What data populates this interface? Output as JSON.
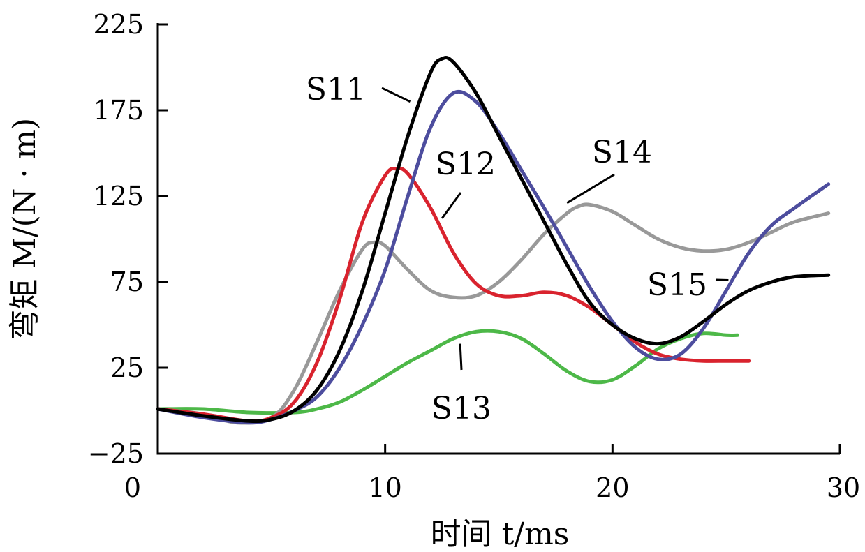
{
  "chart_data": {
    "type": "line",
    "xlabel": "时间 t/ms",
    "ylabel": "弯矩 M/(N · m)",
    "xlim": [
      0,
      30
    ],
    "ylim": [
      -25,
      225
    ],
    "xticks": [
      0,
      10,
      20,
      30
    ],
    "yticks": [
      -25,
      25,
      75,
      125,
      175,
      225
    ],
    "xtick_labels": [
      "0",
      "10",
      "20",
      "30"
    ],
    "ytick_labels": [
      "−25",
      "25",
      "75",
      "125",
      "175",
      "225"
    ],
    "grid": false,
    "series": [
      {
        "name": "S11",
        "color": "#000000",
        "x": [
          0,
          2,
          4,
          5,
          6,
          7,
          8,
          9,
          10,
          11,
          12,
          12.5,
          13,
          14,
          15,
          16,
          17,
          18,
          19,
          20,
          21,
          22,
          23,
          24,
          25,
          26,
          27,
          28,
          29.5
        ],
        "y": [
          1,
          -3,
          -6,
          -5,
          0,
          12,
          35,
          70,
          115,
          160,
          197,
          205,
          203,
          185,
          160,
          135,
          110,
          85,
          63,
          50,
          42,
          39,
          43,
          52,
          62,
          70,
          75,
          78,
          79
        ]
      },
      {
        "name": "S12",
        "color": "#d9232e",
        "x": [
          0,
          2,
          4,
          5,
          6,
          7,
          8,
          9,
          10,
          10.5,
          11,
          12,
          13,
          14,
          15,
          16,
          17,
          18,
          19,
          20,
          21,
          22,
          23,
          24,
          25,
          26
        ],
        "y": [
          1,
          -2,
          -6,
          -4,
          5,
          28,
          65,
          110,
          137,
          141,
          138,
          118,
          92,
          74,
          67,
          67,
          69,
          67,
          60,
          50,
          40,
          33,
          30,
          29,
          29,
          29
        ]
      },
      {
        "name": "S13",
        "color": "#4db848",
        "x": [
          0,
          2,
          4,
          6,
          7,
          8,
          9,
          10,
          11,
          12,
          13,
          14,
          15,
          16,
          17,
          18,
          19,
          20,
          21,
          22,
          23,
          24,
          25,
          25.5
        ],
        "y": [
          1,
          1,
          -1,
          -1,
          1,
          5,
          12,
          20,
          28,
          35,
          42,
          46,
          46,
          42,
          33,
          23,
          17,
          18,
          26,
          36,
          42,
          45,
          44,
          44
        ]
      },
      {
        "name": "S14",
        "color": "#999999",
        "x": [
          0,
          2,
          3.5,
          5,
          6,
          7,
          8,
          9,
          9.5,
          10,
          11,
          12,
          13,
          14,
          15,
          16,
          17,
          18,
          18.5,
          19,
          20,
          21,
          22,
          23,
          24,
          25,
          26,
          27,
          28,
          29.5
        ],
        "y": [
          1,
          -2,
          -7,
          -4,
          12,
          40,
          70,
          94,
          98,
          96,
          82,
          70,
          66,
          67,
          75,
          88,
          103,
          115,
          119,
          120,
          116,
          108,
          100,
          95,
          93,
          94,
          98,
          104,
          110,
          115
        ]
      },
      {
        "name": "S15",
        "color": "#4d4d9e",
        "x": [
          0,
          2,
          4,
          5,
          6,
          7,
          8,
          9,
          10,
          11,
          12,
          13,
          14,
          15,
          16,
          17,
          18,
          19,
          20,
          21,
          22,
          23,
          24,
          25,
          26,
          27,
          28,
          29.5
        ],
        "y": [
          1,
          -4,
          -7,
          -5,
          0,
          8,
          25,
          50,
          82,
          125,
          165,
          185,
          180,
          162,
          140,
          118,
          95,
          72,
          52,
          37,
          30,
          33,
          48,
          70,
          92,
          108,
          118,
          132
        ]
      }
    ],
    "annotations": [
      {
        "text": "S11",
        "series": "S11",
        "x": 11.1,
        "y": 180
      },
      {
        "text": "S12",
        "series": "S12",
        "x": 12.5,
        "y": 112
      },
      {
        "text": "S13",
        "series": "S13",
        "x": 13.3,
        "y": 39
      },
      {
        "text": "S14",
        "series": "S14",
        "x": 18.0,
        "y": 121
      },
      {
        "text": "S15",
        "series": "S15",
        "x": 25.1,
        "y": 76
      }
    ]
  }
}
